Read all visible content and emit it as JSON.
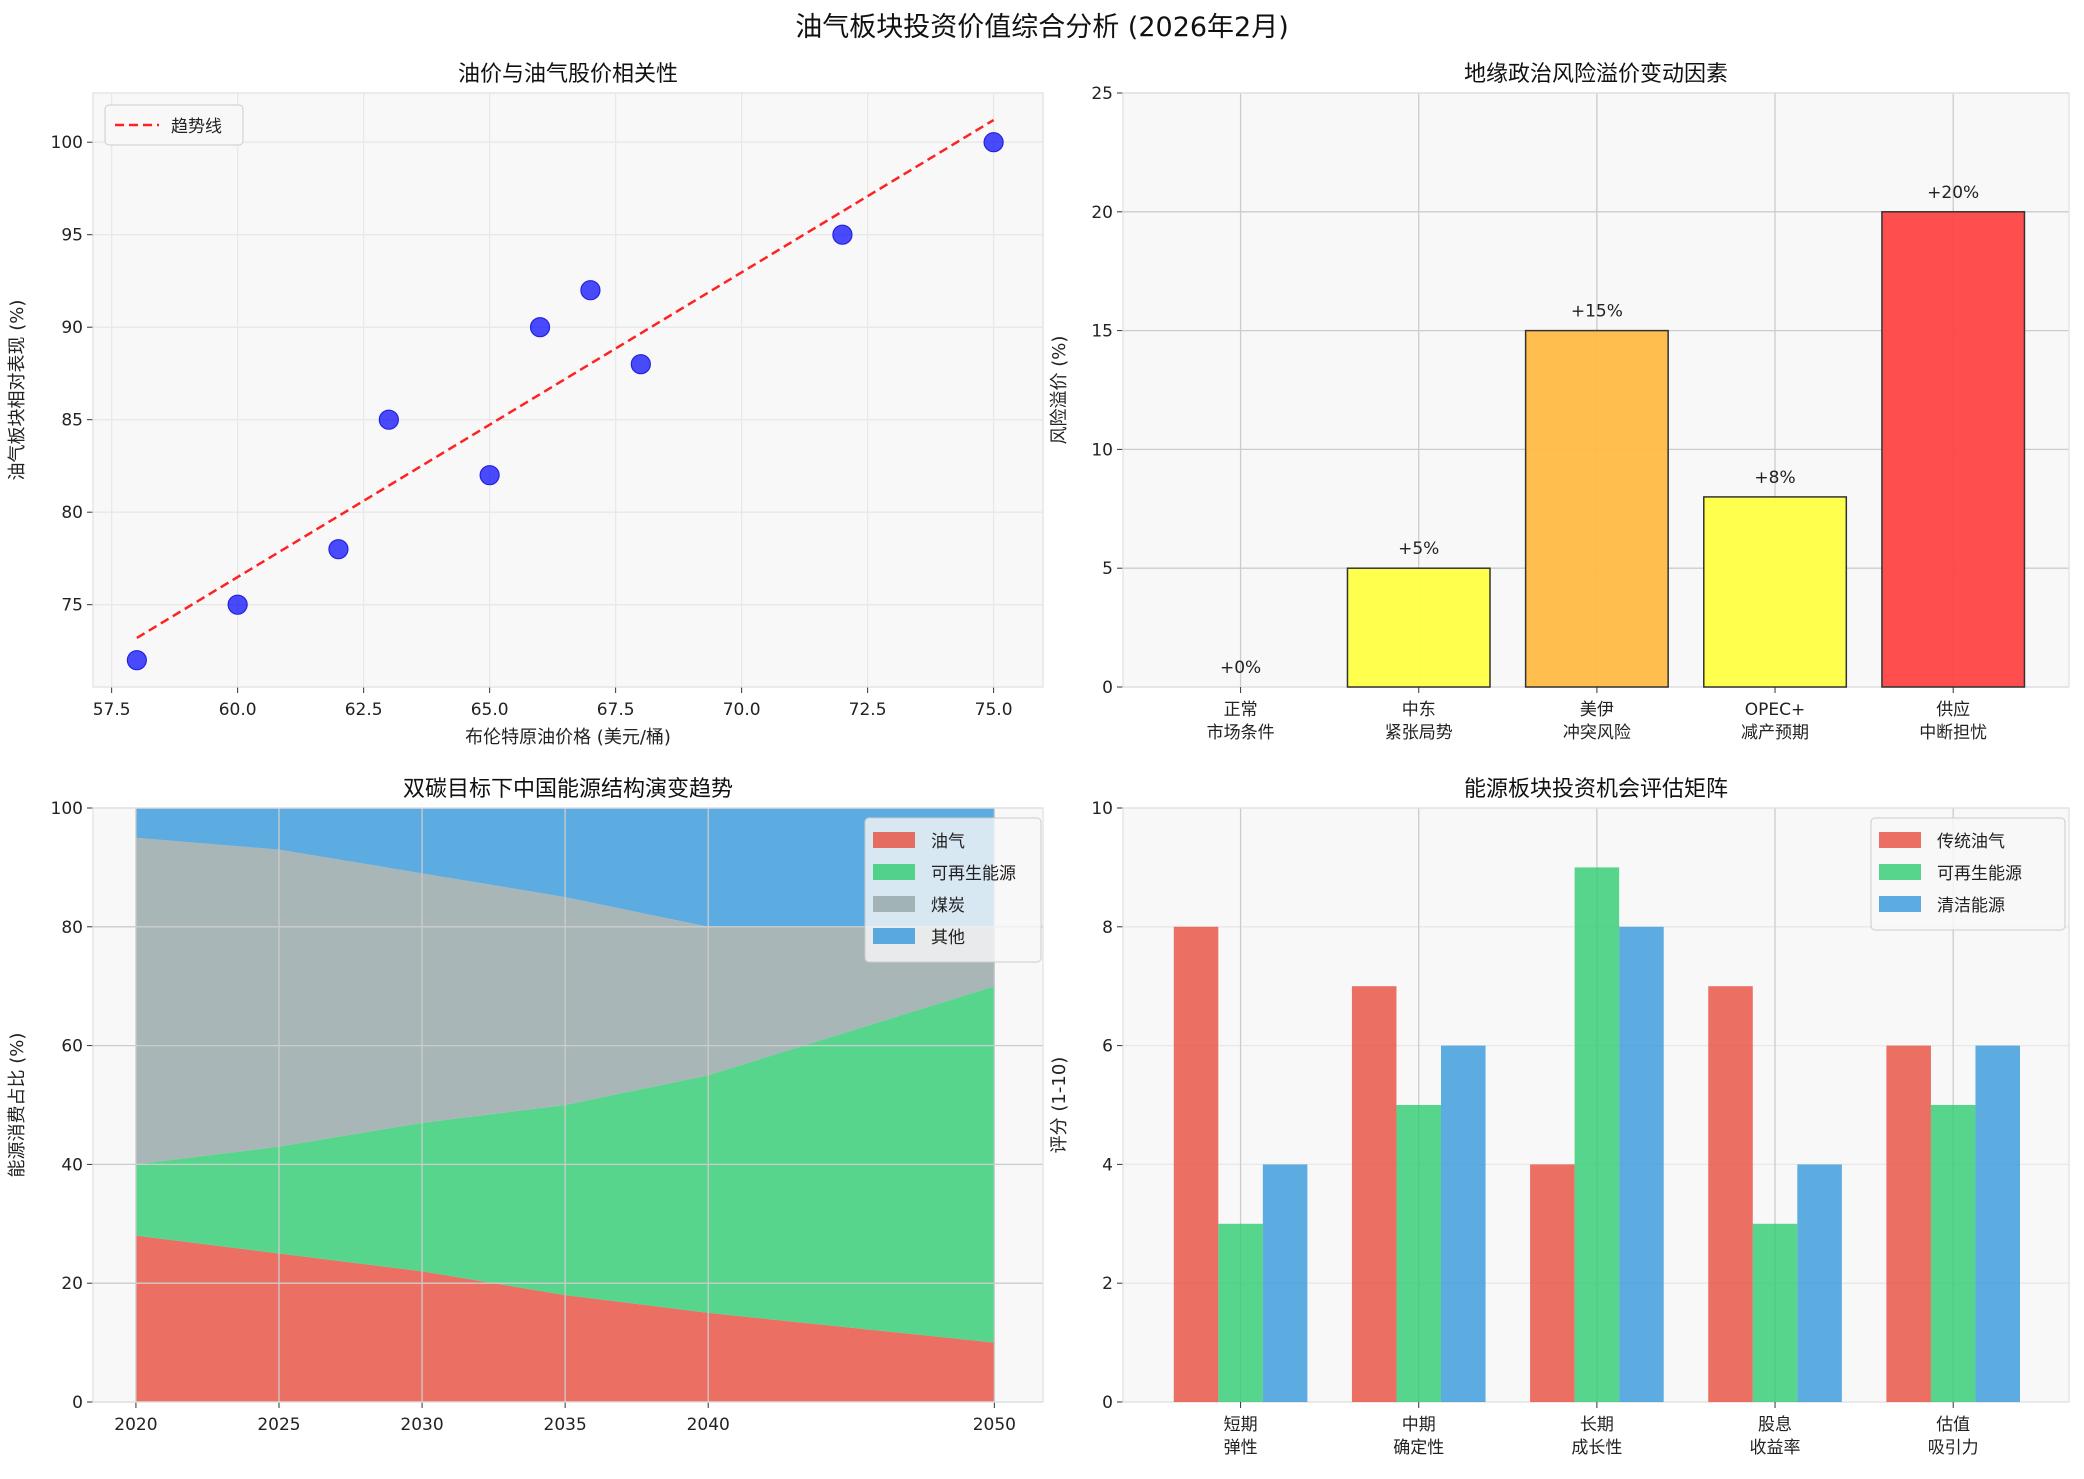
{
  "suptitle": "油气板块投资价值综合分析 (2026年2月)",
  "chart_data": [
    {
      "type": "scatter",
      "title": "油价与油气股价相关性",
      "xlabel": "布伦特原油价格 (美元/桶)",
      "ylabel": "油气板块相对表现 (%)",
      "xlim": [
        57.13,
        75.98
      ],
      "ylim": [
        70.55,
        102.66
      ],
      "xticks": [
        "57.5",
        "60.0",
        "62.5",
        "65.0",
        "67.5",
        "70.0",
        "72.5",
        "75.0"
      ],
      "yticks": [
        "75",
        "80",
        "85",
        "90",
        "95",
        "100"
      ],
      "grid": true,
      "points": {
        "x": [
          58,
          60,
          62,
          63,
          65,
          66,
          67,
          68,
          72,
          75
        ],
        "y": [
          72,
          75,
          78,
          85,
          82,
          90,
          92,
          88,
          95,
          100
        ]
      },
      "point_color": "#0000ff",
      "trendline": {
        "name": "趋势线",
        "x": [
          58,
          75
        ],
        "y": [
          73.2,
          101.2
        ],
        "color": "#ff2222"
      },
      "legend": "top-left"
    },
    {
      "type": "bar",
      "title": "地缘政治风险溢价变动因素",
      "ylabel": "风险溢价 (%)",
      "categories": [
        "正常\n市场条件",
        "中东\n紧张局势",
        "美伊\n冲突风险",
        "OPEC+\n减产预期",
        "供应\n中断担忧"
      ],
      "values": [
        0,
        5,
        15,
        8,
        20
      ],
      "data_labels": [
        "+0%",
        "+5%",
        "+15%",
        "+8%",
        "+20%"
      ],
      "colors": [
        "#cccccc",
        "#ffff44",
        "#ffbb44",
        "#ffff44",
        "#ff4444"
      ],
      "ylim": [
        0,
        25
      ],
      "yticks": [
        "0",
        "5",
        "10",
        "15",
        "20",
        "25"
      ],
      "grid": true
    },
    {
      "type": "area",
      "title": "双碳目标下中国能源结构演变趋势",
      "ylabel": "能源消费占比 (%)",
      "x": [
        2020,
        2025,
        2030,
        2035,
        2040,
        2050
      ],
      "xticks": [
        "2020",
        "2025",
        "2030",
        "2035",
        "2040",
        "2050"
      ],
      "yticks": [
        "0",
        "20",
        "40",
        "60",
        "80",
        "100"
      ],
      "ylim": [
        0,
        100
      ],
      "series": [
        {
          "name": "油气",
          "values": [
            28,
            25,
            22,
            18,
            15,
            10
          ],
          "color": "#e74c3c"
        },
        {
          "name": "可再生能源",
          "values": [
            12,
            18,
            25,
            32,
            40,
            60
          ],
          "color": "#2ecc71"
        },
        {
          "name": "煤炭",
          "values": [
            55,
            50,
            42,
            35,
            25,
            10
          ],
          "color": "#95a5a6"
        },
        {
          "name": "其他",
          "values": [
            5,
            7,
            11,
            15,
            20,
            20
          ],
          "color": "#3498db"
        }
      ],
      "grid": true,
      "legend": "top-right"
    },
    {
      "type": "bar",
      "title": "能源板块投资机会评估矩阵",
      "ylabel": "评分 (1-10)",
      "categories": [
        "短期\n弹性",
        "中期\n确定性",
        "长期\n成长性",
        "股息\n收益率",
        "估值\n吸引力"
      ],
      "series": [
        {
          "name": "传统油气",
          "values": [
            8,
            7,
            4,
            7,
            6
          ],
          "color": "#e74c3c"
        },
        {
          "name": "可再生能源",
          "values": [
            3,
            5,
            9,
            3,
            5
          ],
          "color": "#2ecc71"
        },
        {
          "name": "清洁能源",
          "values": [
            4,
            6,
            8,
            4,
            6
          ],
          "color": "#3498db"
        }
      ],
      "ylim": [
        0,
        10
      ],
      "yticks": [
        "0",
        "2",
        "4",
        "6",
        "8",
        "10"
      ],
      "grid": true,
      "legend": "top-right"
    }
  ]
}
